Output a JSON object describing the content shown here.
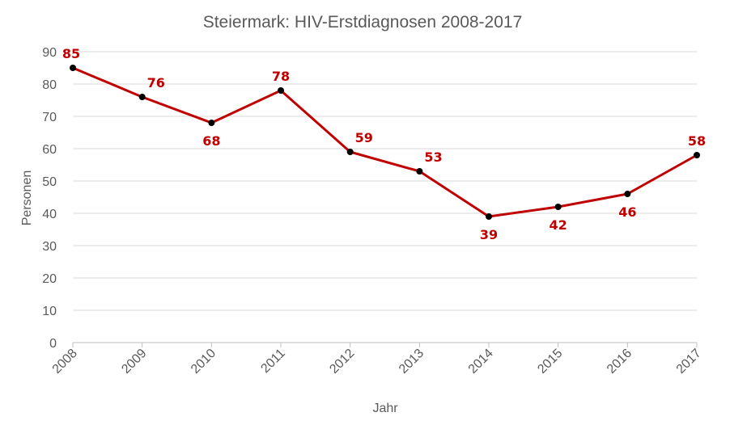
{
  "chart_data": {
    "type": "line",
    "title": "Steiermark: HIV-Erstdiagnosen 2008-2017",
    "xlabel": "Jahr",
    "ylabel": "Personen",
    "categories": [
      "2008",
      "2009",
      "2010",
      "2011",
      "2012",
      "2013",
      "2014",
      "2015",
      "2016",
      "2017"
    ],
    "series": [
      {
        "values": [
          85,
          76,
          68,
          78,
          59,
          53,
          39,
          42,
          46,
          58
        ],
        "color": "#c00000",
        "marker_color": "#000000"
      }
    ],
    "ylim": [
      0,
      90
    ],
    "yticks": [
      0,
      10,
      20,
      30,
      40,
      50,
      60,
      70,
      80,
      90
    ],
    "grid": true,
    "legend": "none"
  }
}
